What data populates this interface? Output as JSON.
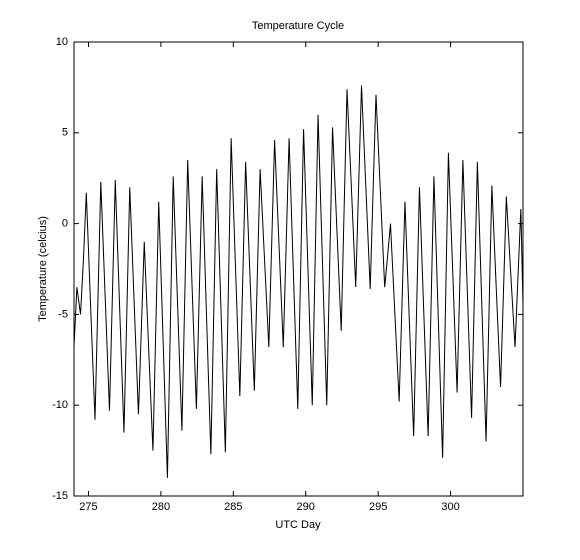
{
  "chart_data": {
    "type": "line",
    "title": "Temperature Cycle",
    "x_label": "UTC Day",
    "y_label": "Temperature (celcius)",
    "xlim": [
      274,
      305
    ],
    "xticks": [
      275,
      280,
      285,
      290,
      295,
      300
    ],
    "ylim": [
      -15,
      10
    ],
    "yticks": [
      -15,
      -10,
      -5,
      0,
      5,
      10
    ],
    "grid": false,
    "series": [
      {
        "color": "#000000",
        "x": [
          274.0,
          274.2,
          274.45,
          274.65,
          274.85,
          275.15,
          275.45,
          275.65,
          275.85,
          276.15,
          276.45,
          276.65,
          276.85,
          277.15,
          277.45,
          277.65,
          277.85,
          278.15,
          278.45,
          278.65,
          278.85,
          279.15,
          279.45,
          279.65,
          279.85,
          280.15,
          280.45,
          280.65,
          280.85,
          281.15,
          281.45,
          281.65,
          281.85,
          282.15,
          282.45,
          282.65,
          282.85,
          283.15,
          283.45,
          283.65,
          283.85,
          284.15,
          284.45,
          284.65,
          284.85,
          285.15,
          285.45,
          285.65,
          285.85,
          286.15,
          286.45,
          286.65,
          286.85,
          287.15,
          287.45,
          287.65,
          287.85,
          288.15,
          288.45,
          288.65,
          288.85,
          289.15,
          289.45,
          289.65,
          289.85,
          290.15,
          290.45,
          290.65,
          290.85,
          291.15,
          291.45,
          291.65,
          291.85,
          292.15,
          292.45,
          292.65,
          292.85,
          293.15,
          293.45,
          293.65,
          293.85,
          294.15,
          294.45,
          294.65,
          294.85,
          295.15,
          295.45,
          295.65,
          295.85,
          296.15,
          296.45,
          296.65,
          296.85,
          297.15,
          297.45,
          297.65,
          297.85,
          298.15,
          298.45,
          298.65,
          298.85,
          299.15,
          299.45,
          299.65,
          299.85,
          300.15,
          300.45,
          300.65,
          300.85,
          301.15,
          301.45,
          301.65,
          301.85,
          302.15,
          302.45,
          302.65,
          302.85,
          303.15,
          303.45,
          303.65,
          303.85,
          304.15,
          304.45,
          304.65,
          304.85,
          305.0
        ],
        "values": [
          -6.8,
          -3.5,
          -5.0,
          -2.0,
          1.7,
          -4.6,
          -10.8,
          -4.3,
          2.3,
          -4.0,
          -10.3,
          -4.0,
          2.4,
          -4.6,
          -11.5,
          -4.8,
          2.0,
          -4.3,
          -10.5,
          -5.8,
          -1.0,
          -6.8,
          -12.5,
          -5.7,
          1.2,
          -6.4,
          -14.0,
          -5.7,
          2.6,
          -4.4,
          -11.4,
          -4.0,
          3.5,
          -3.4,
          -10.2,
          -3.8,
          2.6,
          -5.1,
          -12.7,
          -4.9,
          3.0,
          -4.8,
          -12.6,
          -4.0,
          4.7,
          -2.4,
          -9.5,
          -3.1,
          3.4,
          -2.9,
          -9.2,
          -3.1,
          3.0,
          -1.9,
          -6.8,
          -1.1,
          4.6,
          -1.1,
          -6.8,
          -1.1,
          4.7,
          -2.8,
          -10.2,
          -2.5,
          5.2,
          -2.4,
          -10.0,
          -2.0,
          6.0,
          -2.0,
          -10.0,
          -2.4,
          5.3,
          -0.3,
          -5.9,
          0.8,
          7.4,
          2.0,
          -3.5,
          2.0,
          7.6,
          2.0,
          -3.6,
          1.8,
          7.1,
          1.8,
          -3.5,
          -1.8,
          0.0,
          -4.9,
          -9.8,
          -4.3,
          1.2,
          -5.3,
          -11.7,
          -4.9,
          2.0,
          -4.9,
          -11.7,
          -4.6,
          2.6,
          -5.2,
          -12.9,
          -4.5,
          3.9,
          -2.7,
          -9.3,
          -2.9,
          3.5,
          -3.6,
          -10.7,
          -3.7,
          3.4,
          -4.3,
          -12.0,
          -5.0,
          2.1,
          -3.5,
          -9.0,
          -3.8,
          1.5,
          -2.7,
          -6.8,
          -3.0,
          0.8,
          -4.5
        ]
      }
    ]
  }
}
